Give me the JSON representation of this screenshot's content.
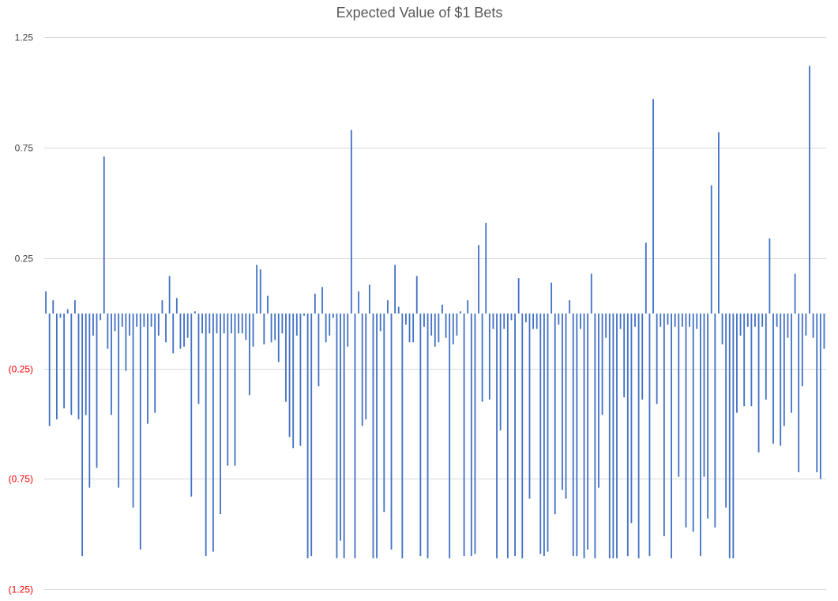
{
  "chart_data": {
    "type": "bar",
    "title": "Expected Value of $1 Bets",
    "xlabel": "",
    "ylabel": "",
    "ylim": [
      -1.25,
      1.25
    ],
    "y_ticks": [
      1.25,
      0.75,
      0.25,
      -0.25,
      -0.75,
      -1.25
    ],
    "y_tick_labels": [
      "1.25",
      "0.75",
      "0.25",
      "(0.25)",
      "(0.75)",
      "(1.25)"
    ],
    "grid": true,
    "legend": "none",
    "colors": {
      "bar": "#4472C4",
      "tick_positive": "#404040",
      "tick_negative": "#FF0000",
      "title": "#595959",
      "grid": "#D9D9D9"
    },
    "values": [
      0.1,
      -0.51,
      0.06,
      -0.48,
      -0.02,
      -0.43,
      0.02,
      -0.46,
      0.06,
      -0.48,
      -1.1,
      -0.46,
      -0.79,
      -0.1,
      -0.7,
      -0.03,
      0.71,
      -0.16,
      -0.46,
      -0.08,
      -0.79,
      -0.06,
      -0.26,
      -0.1,
      -0.88,
      -0.06,
      -1.07,
      -0.06,
      -0.5,
      -0.06,
      -0.45,
      -0.1,
      0.06,
      -0.13,
      0.17,
      -0.18,
      0.07,
      -0.16,
      -0.15,
      -0.11,
      -0.83,
      0.01,
      -0.41,
      -0.09,
      -1.1,
      -0.09,
      -1.08,
      -0.09,
      -0.91,
      -0.09,
      -0.69,
      -0.09,
      -0.69,
      -0.09,
      -0.09,
      -0.12,
      -0.37,
      -0.15,
      0.22,
      0.2,
      -0.14,
      0.08,
      -0.13,
      -0.12,
      -0.22,
      -0.09,
      -0.4,
      -0.56,
      -0.61,
      -0.1,
      -0.6,
      -0.01,
      -1.11,
      -1.1,
      0.09,
      -0.33,
      0.12,
      -0.13,
      -0.1,
      -0.02,
      -1.11,
      -1.03,
      -1.11,
      -0.15,
      0.83,
      -1.11,
      0.1,
      -0.51,
      -0.48,
      0.13,
      -1.11,
      -1.11,
      -0.08,
      -0.9,
      0.06,
      -1.07,
      0.22,
      0.03,
      -1.11,
      -0.05,
      -0.13,
      -0.13,
      0.17,
      -1.1,
      -0.06,
      -1.11,
      -0.1,
      -0.15,
      -0.13,
      0.04,
      -0.11,
      -1.11,
      -0.14,
      -0.1,
      0.01,
      -1.1,
      0.06,
      -1.1,
      -1.09,
      0.31,
      -0.4,
      0.41,
      -0.39,
      -0.07,
      -1.11,
      -0.53,
      -0.07,
      -1.11,
      -0.03,
      -1.1,
      0.16,
      -1.11,
      -0.04,
      -0.84,
      -0.07,
      -0.07,
      -1.09,
      -1.1,
      -1.08,
      0.14,
      -0.91,
      -0.05,
      -0.8,
      -0.84,
      0.06,
      -1.1,
      -1.1,
      -0.07,
      -1.11,
      -1.07,
      0.18,
      -1.11,
      -0.79,
      -0.46,
      -0.11,
      -1.11,
      -1.11,
      -1.11,
      -0.07,
      -0.38,
      -1.1,
      -0.95,
      -0.06,
      -1.11,
      -0.39,
      0.32,
      -1.1,
      0.97,
      -0.41,
      -0.06,
      -1.01,
      -0.05,
      -1.11,
      -0.06,
      -0.74,
      -0.06,
      -0.97,
      -0.06,
      -0.99,
      -0.07,
      -1.1,
      -0.74,
      -0.93,
      0.58,
      -0.97,
      0.82,
      -0.14,
      -0.88,
      -1.11,
      -1.11,
      -0.45,
      -0.1,
      -0.42,
      -0.06,
      -0.42,
      -0.06,
      -0.63,
      -0.06,
      -0.39,
      0.34,
      -0.59,
      -0.06,
      -0.6,
      -0.51,
      -0.11,
      -0.45,
      0.18,
      -0.72,
      -0.33,
      -0.1,
      1.12,
      -0.11,
      -0.72,
      -0.75,
      -0.16
    ]
  }
}
